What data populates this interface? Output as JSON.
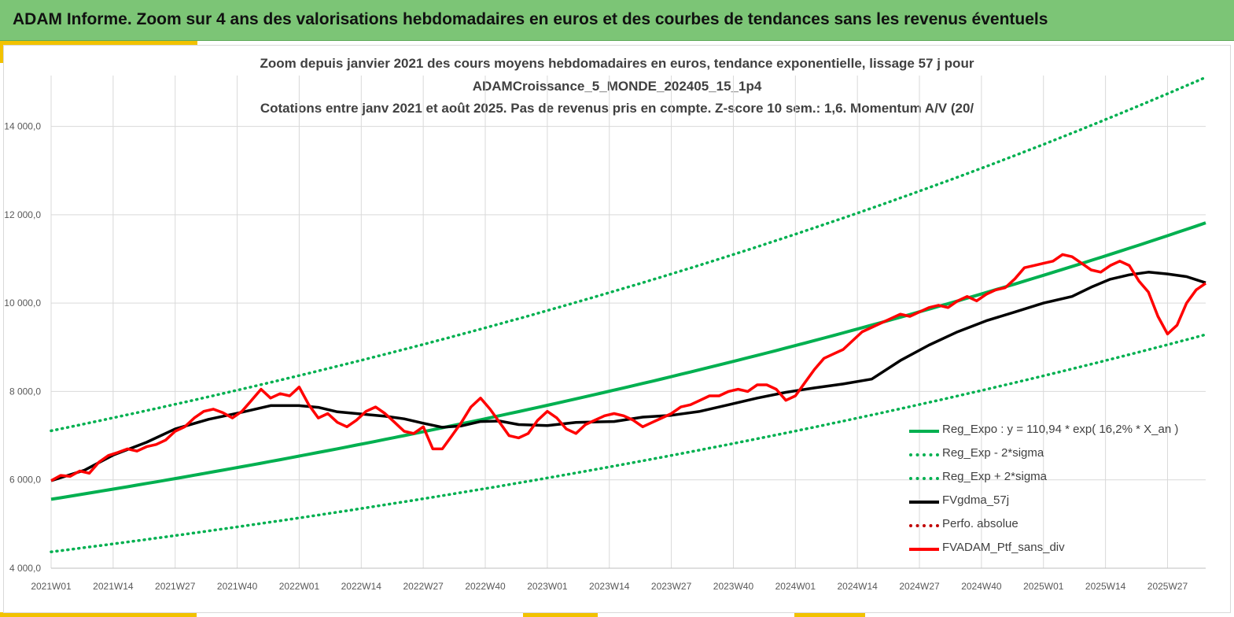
{
  "header": {
    "title": "ADAM Informe. Zoom sur 4 ans des valorisations hebdomadaires en euros et des courbes de tendances sans les revenus éventuels"
  },
  "colors": {
    "banner": "#7cc576",
    "accent": "#f2c200",
    "trend": "#00b050",
    "sigma": "#00b050",
    "smooth": "#000000",
    "perfo": "#c00000",
    "portfolio": "#ff0000"
  },
  "chart_data": {
    "type": "line",
    "title_lines": [
      "Zoom depuis janvier 2021 des cours moyens hebdomadaires  en euros, tendance exponentielle, lissage 57 j pour",
      "ADAMCroissance_5_MONDE_202405_15_1p4",
      "Cotations entre janv 2021 et août 2025. Pas de revenus pris en compte. Z-score 10 sem.: 1,6. Momentum A/V (20/"
    ],
    "x_tick_labels": [
      "2021W01",
      "2021W14",
      "2021W27",
      "2021W40",
      "2022W01",
      "2022W14",
      "2022W27",
      "2022W40",
      "2023W01",
      "2023W14",
      "2023W27",
      "2023W40",
      "2024W01",
      "2024W14",
      "2024W27",
      "2024W40",
      "2025W01",
      "2025W14",
      "2025W27"
    ],
    "y_tick_labels": [
      "4 000,0",
      "6 000,0",
      "8 000,0",
      "10 000,0",
      "12 000,0",
      "14 000,0"
    ],
    "y_ticks": [
      4000,
      6000,
      8000,
      10000,
      12000,
      14000
    ],
    "ylim": [
      4000,
      15150
    ],
    "x_range_weeks": [
      0,
      242
    ],
    "grid": true,
    "legend_position": "bottom-right",
    "trend_model": {
      "a": 110.94,
      "rate": 0.162,
      "start_value": 5560,
      "lower_start": 4370,
      "upper_start": 7110
    },
    "series": [
      {
        "name": "Reg_Expo : y = 110,94 * exp( 16,2% *  X_an )",
        "style": "solid-green"
      },
      {
        "name": "Reg_Exp - 2*sigma",
        "style": "dotted-green"
      },
      {
        "name": "Reg_Exp + 2*sigma",
        "style": "dotted-green"
      },
      {
        "name": "FVgdma_57j",
        "style": "solid-black",
        "x": [
          0,
          7,
          13,
          20,
          26,
          33,
          40,
          46,
          52,
          56,
          60,
          66,
          70,
          74,
          78,
          82,
          86,
          90,
          94,
          98,
          104,
          110,
          118,
          124,
          130,
          136,
          142,
          148,
          154,
          160,
          166,
          172,
          178,
          184,
          190,
          196,
          202,
          208,
          214,
          218,
          222,
          226,
          230,
          234,
          238,
          242
        ],
        "y": [
          5980,
          6220,
          6560,
          6850,
          7150,
          7370,
          7530,
          7680,
          7680,
          7640,
          7540,
          7480,
          7440,
          7380,
          7280,
          7190,
          7220,
          7320,
          7330,
          7250,
          7230,
          7300,
          7320,
          7420,
          7460,
          7550,
          7700,
          7850,
          7980,
          8080,
          8170,
          8280,
          8700,
          9050,
          9350,
          9600,
          9800,
          10000,
          10150,
          10360,
          10540,
          10640,
          10700,
          10660,
          10600,
          10460
        ]
      },
      {
        "name": "Perfo. absolue",
        "style": "dotted-red"
      },
      {
        "name": "FVADAM_Ptf_sans_div",
        "style": "solid-red",
        "x": [
          0,
          2,
          4,
          6,
          8,
          10,
          12,
          14,
          16,
          18,
          20,
          22,
          24,
          26,
          28,
          30,
          32,
          34,
          36,
          38,
          40,
          42,
          44,
          46,
          48,
          50,
          52,
          54,
          56,
          58,
          60,
          62,
          64,
          66,
          68,
          70,
          72,
          74,
          76,
          78,
          80,
          82,
          84,
          86,
          88,
          90,
          92,
          94,
          96,
          98,
          100,
          102,
          104,
          106,
          108,
          110,
          112,
          114,
          116,
          118,
          120,
          122,
          124,
          126,
          128,
          130,
          132,
          134,
          136,
          138,
          140,
          142,
          144,
          146,
          148,
          150,
          152,
          154,
          156,
          158,
          160,
          162,
          164,
          166,
          168,
          170,
          172,
          174,
          176,
          178,
          180,
          182,
          184,
          186,
          188,
          190,
          192,
          194,
          196,
          198,
          200,
          202,
          204,
          206,
          208,
          210,
          212,
          214,
          216,
          218,
          220,
          222,
          224,
          226,
          228,
          230,
          232,
          234,
          236,
          238,
          240,
          242
        ],
        "y": [
          5980,
          6100,
          6080,
          6200,
          6150,
          6400,
          6550,
          6620,
          6700,
          6650,
          6750,
          6800,
          6900,
          7100,
          7200,
          7400,
          7550,
          7600,
          7520,
          7400,
          7550,
          7800,
          8050,
          7850,
          7950,
          7900,
          8100,
          7700,
          7400,
          7500,
          7300,
          7200,
          7350,
          7550,
          7650,
          7500,
          7300,
          7100,
          7050,
          7200,
          6700,
          6700,
          7000,
          7300,
          7650,
          7850,
          7600,
          7300,
          7000,
          6950,
          7050,
          7350,
          7550,
          7400,
          7150,
          7050,
          7250,
          7350,
          7450,
          7500,
          7450,
          7350,
          7200,
          7300,
          7400,
          7500,
          7650,
          7700,
          7800,
          7900,
          7900,
          8000,
          8050,
          8000,
          8150,
          8150,
          8050,
          7800,
          7900,
          8200,
          8500,
          8750,
          8850,
          8950,
          9150,
          9350,
          9450,
          9550,
          9650,
          9750,
          9700,
          9800,
          9900,
          9950,
          9900,
          10050,
          10150,
          10050,
          10200,
          10300,
          10350,
          10550,
          10800,
          10850,
          10900,
          10950,
          11100,
          11050,
          10900,
          10750,
          10700,
          10850,
          10950,
          10850,
          10500,
          10250,
          9700,
          9300,
          9500,
          10000,
          10300,
          10450
        ]
      }
    ]
  }
}
